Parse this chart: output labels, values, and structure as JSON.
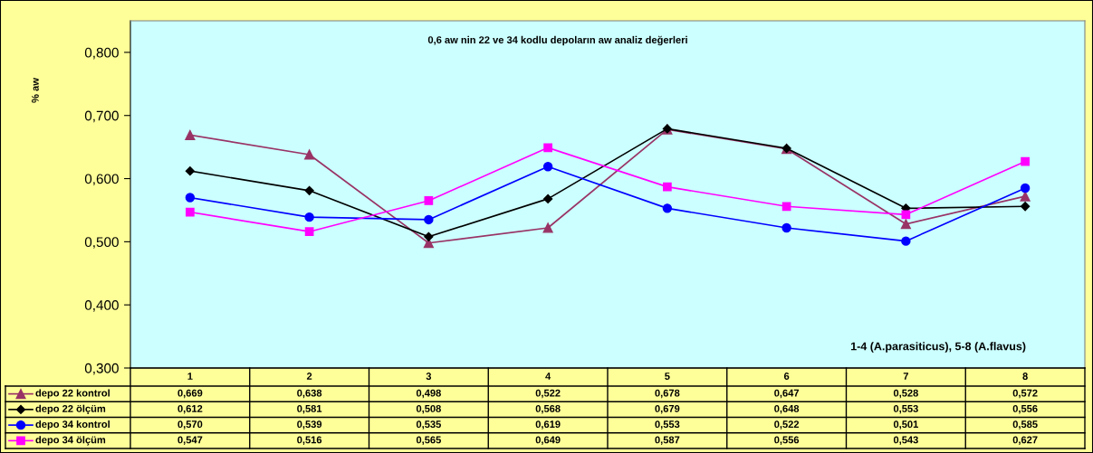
{
  "chart_data": {
    "type": "line",
    "title": "0,6 aw nin 22 ve 34 kodlu depoların aw analiz değerleri",
    "ylabel": "% aw",
    "annotations": [
      "1-4 (A.parasiticus), 5-8 (A.flavus)"
    ],
    "categories": [
      "1",
      "2",
      "3",
      "4",
      "5",
      "6",
      "7",
      "8"
    ],
    "series": [
      {
        "name": "depo 22 kontrol",
        "color": "#993366",
        "marker": "triangle",
        "values": [
          0.669,
          0.638,
          0.498,
          0.522,
          0.678,
          0.647,
          0.528,
          0.572
        ],
        "value_labels": [
          "0,669",
          "0,638",
          "0,498",
          "0,522",
          "0,678",
          "0,647",
          "0,528",
          "0,572"
        ]
      },
      {
        "name": "depo 22 ölçüm",
        "color": "#000000",
        "marker": "diamond",
        "values": [
          0.612,
          0.581,
          0.508,
          0.568,
          0.679,
          0.648,
          0.553,
          0.556
        ],
        "value_labels": [
          "0,612",
          "0,581",
          "0,508",
          "0,568",
          "0,679",
          "0,648",
          "0,553",
          "0,556"
        ]
      },
      {
        "name": "depo 34 kontrol",
        "color": "#0000ff",
        "marker": "circle",
        "values": [
          0.57,
          0.539,
          0.535,
          0.619,
          0.553,
          0.522,
          0.501,
          0.585
        ],
        "value_labels": [
          "0,570",
          "0,539",
          "0,535",
          "0,619",
          "0,553",
          "0,522",
          "0,501",
          "0,585"
        ]
      },
      {
        "name": "depo 34 ölçüm",
        "color": "#ff00ff",
        "marker": "square",
        "values": [
          0.547,
          0.516,
          0.565,
          0.649,
          0.587,
          0.556,
          0.543,
          0.627
        ],
        "value_labels": [
          "0,547",
          "0,516",
          "0,565",
          "0,649",
          "0,587",
          "0,556",
          "0,543",
          "0,627"
        ]
      }
    ],
    "ylim": [
      0.3,
      0.85
    ],
    "yticks": [
      {
        "value": 0.3,
        "label": "0,300"
      },
      {
        "value": 0.4,
        "label": "0,400"
      },
      {
        "value": 0.5,
        "label": "0,500"
      },
      {
        "value": 0.6,
        "label": "0,600"
      },
      {
        "value": 0.7,
        "label": "0,700"
      },
      {
        "value": 0.8,
        "label": "0,800"
      }
    ],
    "legend": "bottom"
  }
}
